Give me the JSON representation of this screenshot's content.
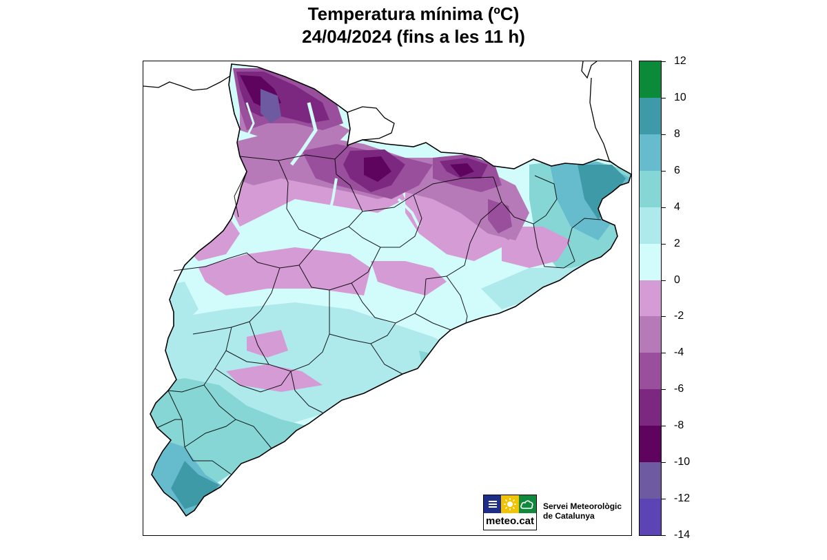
{
  "title": {
    "line1": "Temperatura mínima (ºC)",
    "line2": "24/04/2024 (fins a les 11 h)"
  },
  "colorbar": {
    "labels": [
      "12",
      "10",
      "8",
      "6",
      "4",
      "2",
      "0",
      "-2",
      "-4",
      "-6",
      "-8",
      "-10",
      "-12",
      "-14"
    ],
    "bins": [
      {
        "range": "10 to 12",
        "color": "#0b8a3a"
      },
      {
        "range": "8 to 10",
        "color": "#3f9aa8"
      },
      {
        "range": "6 to 8",
        "color": "#66bccd"
      },
      {
        "range": "4 to 6",
        "color": "#86d6d6"
      },
      {
        "range": "2 to 4",
        "color": "#aee9ec"
      },
      {
        "range": "0 to 2",
        "color": "#d2fbfb"
      },
      {
        "range": "-2 to 0",
        "color": "#d49bd4"
      },
      {
        "range": "-4 to -2",
        "color": "#b77ab9"
      },
      {
        "range": "-6 to -4",
        "color": "#994f9c"
      },
      {
        "range": "-8 to -6",
        "color": "#7d2880"
      },
      {
        "range": "-10 to -8",
        "color": "#5e045f"
      },
      {
        "range": "-12 to -10",
        "color": "#6d5aa0"
      },
      {
        "range": "-14 to -12",
        "color": "#5c44b4"
      }
    ]
  },
  "logo": {
    "text": "meteo.cat",
    "icons": [
      "menu-lines-icon",
      "sun-icon",
      "cloud-icon"
    ],
    "colors": {
      "blue": "#1f2d8a",
      "yellow": "#f3c300",
      "green": "#0f8a3c"
    }
  },
  "agency": {
    "line1": "Servei Meteorològic",
    "line2": "de Catalunya"
  }
}
